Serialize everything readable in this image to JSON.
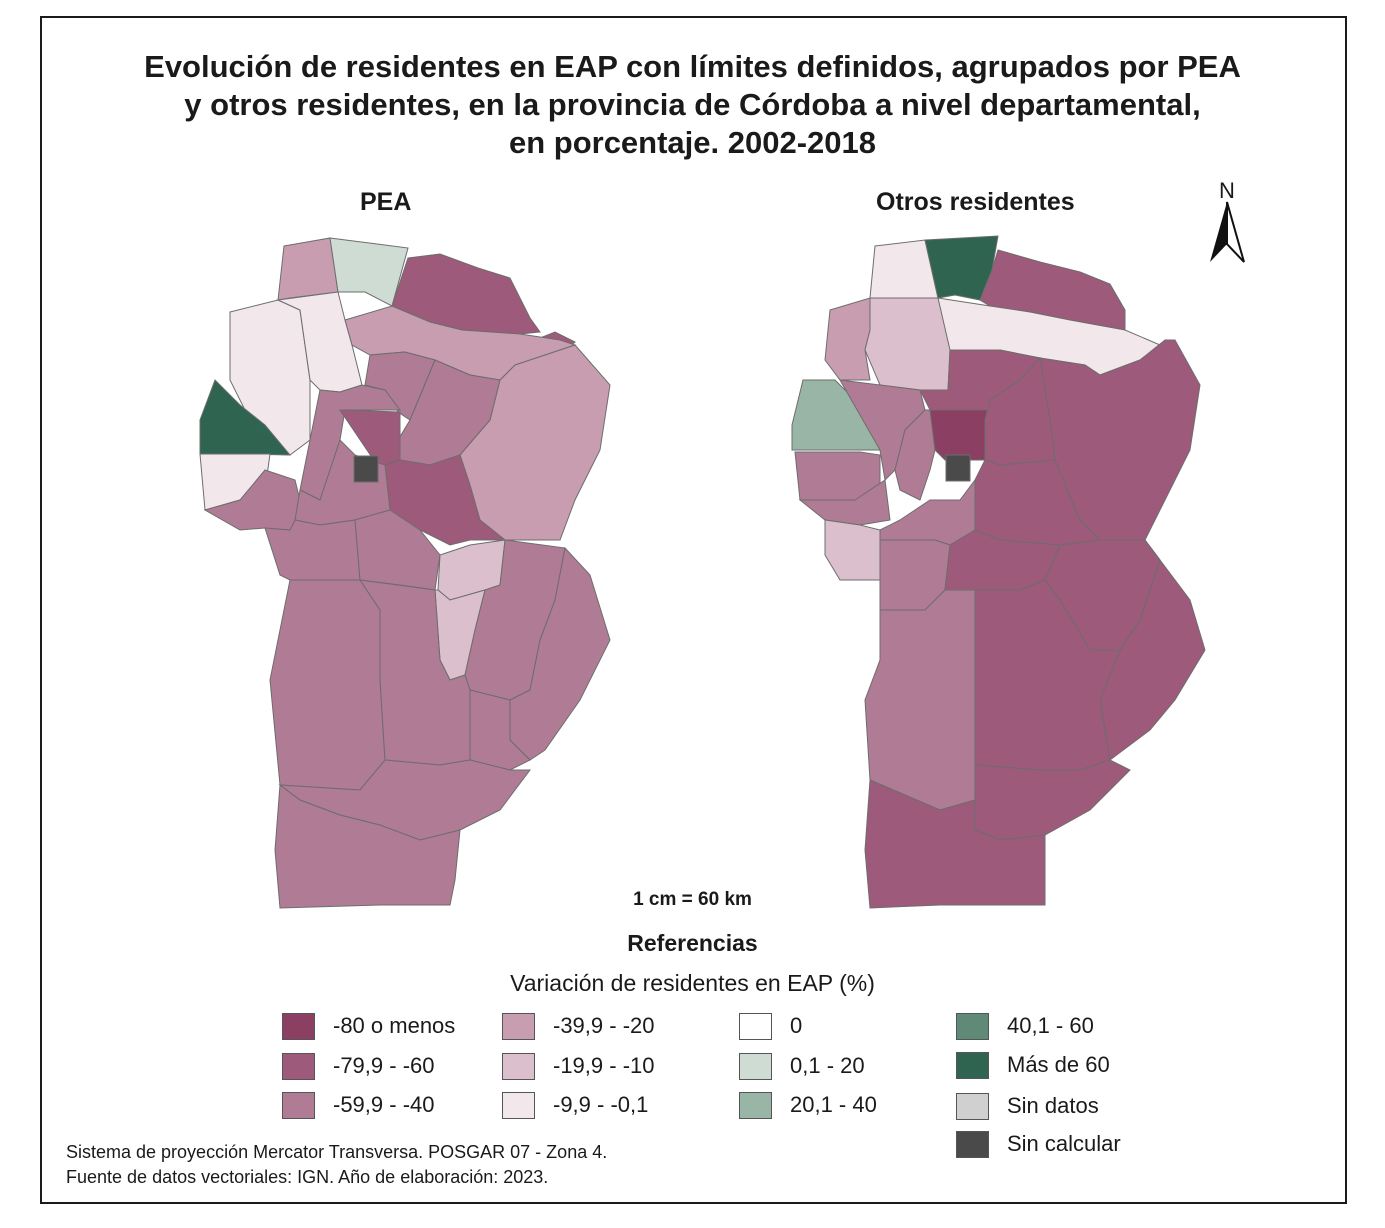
{
  "title": {
    "line1": "Evolución de residentes en EAP con límites definidos, agrupados por PEA",
    "line2": "y otros residentes, en la provincia de Córdoba a nivel departamental,",
    "line3": "en porcentaje. 2002-2018"
  },
  "maps": {
    "pea_label": "PEA",
    "otros_label": "Otros residentes"
  },
  "north_label": "N",
  "scale_label": "1 cm = 60 km",
  "legend": {
    "title": "Referencias",
    "subtitle": "Variación de residentes en EAP (%)",
    "items": [
      {
        "label": "-80 o menos",
        "color": "#8a3f63"
      },
      {
        "label": "-79,9 - -60",
        "color": "#9d5a7b"
      },
      {
        "label": "-59,9 - -40",
        "color": "#b07b94"
      },
      {
        "label": "-39,9 - -20",
        "color": "#c89db0"
      },
      {
        "label": "-19,9 - -10",
        "color": "#dcbfcc"
      },
      {
        "label": "-9,9 - -0,1",
        "color": "#f2e8ec"
      },
      {
        "label": "0",
        "color": "#ffffff"
      },
      {
        "label": "0,1 - 20",
        "color": "#cfdcd4"
      },
      {
        "label": "20,1 - 40",
        "color": "#98b5a6"
      },
      {
        "label": "40,1 - 60",
        "color": "#5f8a77"
      },
      {
        "label": "Más de 60",
        "color": "#2e6450"
      },
      {
        "label": "Sin datos",
        "color": "#d0d0d0"
      },
      {
        "label": "Sin calcular",
        "color": "#4a4a4a"
      }
    ]
  },
  "footer": {
    "line1": "Sistema de proyección Mercator Transversa. POSGAR 07 - Zona 4.",
    "line2": "Fuente de datos vectoriales: IGN. Año de elaboración: 2023."
  }
}
